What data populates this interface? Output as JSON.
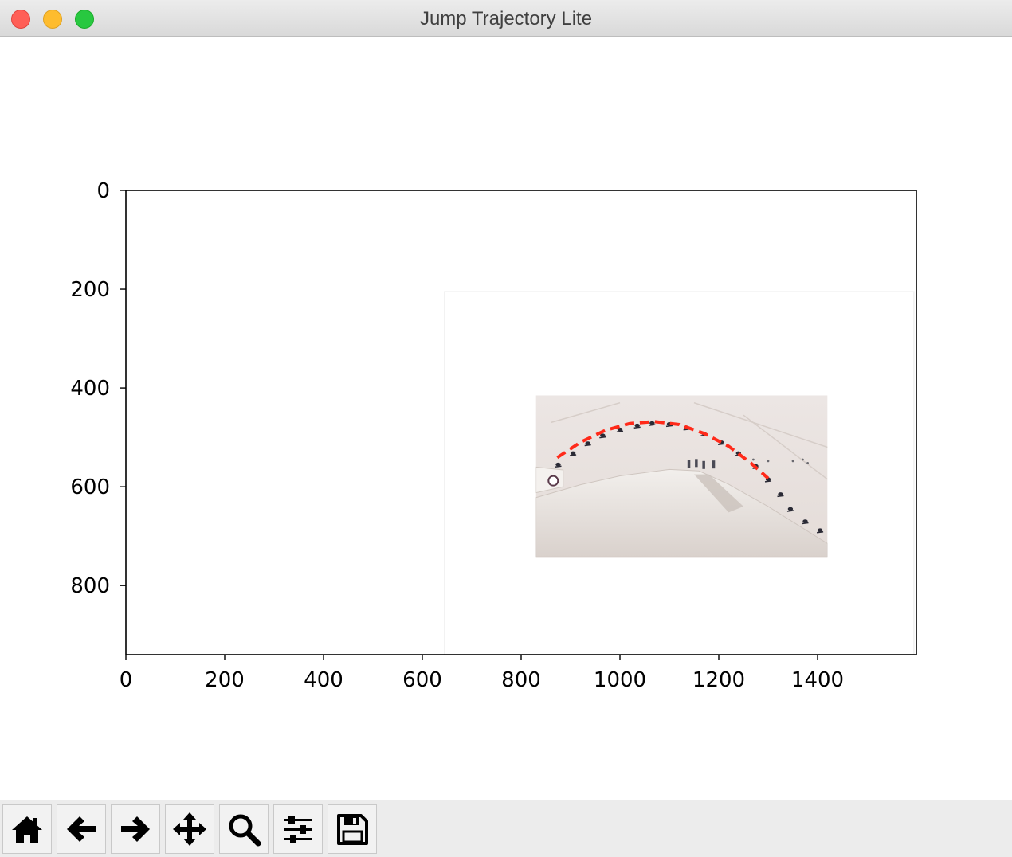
{
  "window": {
    "title": "Jump Trajectory Lite"
  },
  "chart_data": {
    "type": "image",
    "xlim": [
      0,
      1600
    ],
    "ylim": [
      940,
      0
    ],
    "xticks": [
      "0",
      "200",
      "400",
      "600",
      "800",
      "1000",
      "1200",
      "1400"
    ],
    "yticks": [
      "0",
      "200",
      "400",
      "600",
      "800"
    ],
    "image_extent": {
      "x": [
        645,
        1595
      ],
      "y": [
        205,
        940
      ]
    },
    "photo_extent": {
      "x": [
        830,
        1420
      ],
      "y": [
        415,
        742
      ]
    },
    "trajectory": {
      "color": "#ff2a1a",
      "style": "dashed",
      "points": [
        [
          873,
          541
        ],
        [
          920,
          510
        ],
        [
          970,
          486
        ],
        [
          1020,
          472
        ],
        [
          1070,
          468
        ],
        [
          1120,
          474
        ],
        [
          1170,
          492
        ],
        [
          1220,
          518
        ],
        [
          1265,
          552
        ],
        [
          1300,
          583
        ]
      ]
    },
    "riders": [
      [
        875,
        555
      ],
      [
        905,
        532
      ],
      [
        935,
        512
      ],
      [
        965,
        496
      ],
      [
        1000,
        484
      ],
      [
        1035,
        476
      ],
      [
        1065,
        471
      ],
      [
        1100,
        473
      ],
      [
        1135,
        480
      ],
      [
        1170,
        492
      ],
      [
        1205,
        510
      ],
      [
        1240,
        532
      ],
      [
        1275,
        558
      ],
      [
        1300,
        585
      ],
      [
        1325,
        615
      ],
      [
        1345,
        645
      ],
      [
        1375,
        670
      ],
      [
        1405,
        688
      ]
    ]
  },
  "toolbar": {
    "buttons": [
      {
        "name": "home-button",
        "icon": "home-icon"
      },
      {
        "name": "back-button",
        "icon": "arrow-left-icon"
      },
      {
        "name": "forward-button",
        "icon": "arrow-right-icon"
      },
      {
        "name": "pan-button",
        "icon": "move-icon"
      },
      {
        "name": "zoom-button",
        "icon": "magnifier-icon"
      },
      {
        "name": "configure-subplots-button",
        "icon": "sliders-icon"
      },
      {
        "name": "save-button",
        "icon": "floppy-disk-icon"
      }
    ]
  }
}
